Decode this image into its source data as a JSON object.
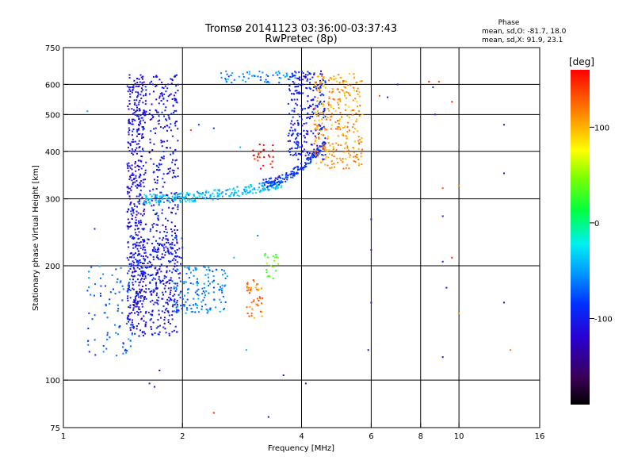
{
  "title": "Tromsø 20141123 03:36:00-03:37:43",
  "subtitle": "RwPretec (8p)",
  "phase_box": {
    "heading": "Phase",
    "line_o": "mean, sd,O: -81.7, 18.0",
    "line_x": "mean, sd,X:  91.9, 23.1"
  },
  "colorbar": {
    "unit": "[deg]",
    "ticks": [
      {
        "value": 100,
        "label": "100"
      },
      {
        "value": 0,
        "label": "0"
      },
      {
        "value": -100,
        "label": "-100"
      }
    ],
    "range": [
      -190,
      160
    ]
  },
  "chart_data": {
    "type": "scatter",
    "xlabel": "Frequency [MHz]",
    "ylabel": "Stationary phase Virtual Height [km]",
    "xscale": "log",
    "yscale": "log",
    "xlim": [
      1,
      16
    ],
    "ylim": [
      75,
      750
    ],
    "xticks": [
      {
        "value": 1,
        "label": "1"
      },
      {
        "value": 2,
        "label": "2"
      },
      {
        "value": 4,
        "label": "4"
      },
      {
        "value": 6,
        "label": "6"
      },
      {
        "value": 8,
        "label": "8"
      },
      {
        "value": 10,
        "label": "10"
      },
      {
        "value": 16,
        "label": "16"
      }
    ],
    "yticks": [
      {
        "value": 75,
        "label": "75"
      },
      {
        "value": 100,
        "label": "100"
      },
      {
        "value": 200,
        "label": "200"
      },
      {
        "value": 300,
        "label": "300"
      },
      {
        "value": 400,
        "label": "400"
      },
      {
        "value": 500,
        "label": "500"
      },
      {
        "value": 600,
        "label": "600"
      },
      {
        "value": 750,
        "label": "750"
      }
    ],
    "gridlines_x": [
      2,
      4,
      6,
      8,
      10
    ],
    "gridlines_y": [
      100,
      200,
      300,
      400,
      500,
      600
    ],
    "grid": true,
    "colorscale": "rainbow",
    "clusters": [
      {
        "f": [
          1.45,
          1.62
        ],
        "h": [
          130,
          640
        ],
        "phase": -110,
        "n": 520,
        "shape": "band"
      },
      {
        "f": [
          1.65,
          1.95
        ],
        "h": [
          130,
          640
        ],
        "phase": -105,
        "n": 380,
        "shape": "band"
      },
      {
        "f": [
          1.5,
          2.0
        ],
        "h": [
          150,
          240
        ],
        "phase": -100,
        "n": 220,
        "shape": "band"
      },
      {
        "f": [
          1.9,
          2.6
        ],
        "h": [
          150,
          200
        ],
        "phase": -60,
        "n": 140,
        "shape": "band"
      },
      {
        "f": [
          1.15,
          1.5
        ],
        "h": [
          115,
          200
        ],
        "phase": -70,
        "n": 90,
        "shape": "band"
      },
      {
        "f0": 1.6,
        "f1": 3.6,
        "h0": 300,
        "h1": 330,
        "phase": -40,
        "n": 260,
        "shape": "trace"
      },
      {
        "f0": 3.2,
        "f1": 4.6,
        "h0": 330,
        "h1": 420,
        "phase": -90,
        "n": 160,
        "shape": "trace"
      },
      {
        "f": [
          3.7,
          4.6
        ],
        "h": [
          380,
          650
        ],
        "phase": -100,
        "n": 260,
        "shape": "band"
      },
      {
        "f": [
          4.3,
          5.7
        ],
        "h": [
          360,
          640
        ],
        "phase": 110,
        "n": 300,
        "shape": "band"
      },
      {
        "f": [
          2.5,
          3.9
        ],
        "h": [
          605,
          650
        ],
        "phase": -60,
        "n": 60,
        "shape": "band"
      },
      {
        "f": [
          2.9,
          3.2
        ],
        "h": [
          145,
          185
        ],
        "phase": 120,
        "n": 45,
        "shape": "band"
      },
      {
        "f": [
          3.2,
          3.5
        ],
        "h": [
          185,
          215
        ],
        "phase": 40,
        "n": 20,
        "shape": "band"
      },
      {
        "f": [
          3.0,
          3.4
        ],
        "h": [
          360,
          420
        ],
        "phase": 160,
        "n": 25,
        "shape": "band"
      }
    ],
    "scattered_points": [
      {
        "f": 1.7,
        "h": 96,
        "phase": -100
      },
      {
        "f": 1.65,
        "h": 98,
        "phase": -100
      },
      {
        "f": 1.75,
        "h": 106,
        "phase": -120
      },
      {
        "f": 2.4,
        "h": 82,
        "phase": 150
      },
      {
        "f": 3.3,
        "h": 80,
        "phase": -120
      },
      {
        "f": 4.1,
        "h": 98,
        "phase": -110
      },
      {
        "f": 3.6,
        "h": 103,
        "phase": -110
      },
      {
        "f": 5.9,
        "h": 120,
        "phase": -110
      },
      {
        "f": 6.0,
        "h": 160,
        "phase": -110
      },
      {
        "f": 6.0,
        "h": 220,
        "phase": -110
      },
      {
        "f": 6.0,
        "h": 265,
        "phase": -110
      },
      {
        "f": 6.3,
        "h": 560,
        "phase": 130
      },
      {
        "f": 6.6,
        "h": 555,
        "phase": -100
      },
      {
        "f": 7.0,
        "h": 600,
        "phase": -110
      },
      {
        "f": 8.4,
        "h": 610,
        "phase": 150
      },
      {
        "f": 8.6,
        "h": 590,
        "phase": -100
      },
      {
        "f": 8.9,
        "h": 610,
        "phase": 140
      },
      {
        "f": 9.6,
        "h": 540,
        "phase": 150
      },
      {
        "f": 8.7,
        "h": 500,
        "phase": -100
      },
      {
        "f": 9.1,
        "h": 320,
        "phase": 130
      },
      {
        "f": 9.1,
        "h": 270,
        "phase": -100
      },
      {
        "f": 9.1,
        "h": 205,
        "phase": -100
      },
      {
        "f": 9.6,
        "h": 210,
        "phase": 150
      },
      {
        "f": 9.3,
        "h": 175,
        "phase": -100
      },
      {
        "f": 9.1,
        "h": 115,
        "phase": -100
      },
      {
        "f": 10.0,
        "h": 150,
        "phase": 110
      },
      {
        "f": 10.0,
        "h": 325,
        "phase": 120
      },
      {
        "f": 13.0,
        "h": 350,
        "phase": -100
      },
      {
        "f": 13.0,
        "h": 470,
        "phase": -100
      },
      {
        "f": 13.0,
        "h": 160,
        "phase": -120
      },
      {
        "f": 13.5,
        "h": 120,
        "phase": 120
      },
      {
        "f": 1.2,
        "h": 250,
        "phase": -100
      },
      {
        "f": 1.15,
        "h": 510,
        "phase": -50
      },
      {
        "f": 2.8,
        "h": 410,
        "phase": -40
      },
      {
        "f": 3.1,
        "h": 240,
        "phase": -60
      },
      {
        "f": 2.7,
        "h": 210,
        "phase": -40
      },
      {
        "f": 2.9,
        "h": 120,
        "phase": -40
      },
      {
        "f": 2.2,
        "h": 470,
        "phase": -80
      },
      {
        "f": 2.4,
        "h": 460,
        "phase": -90
      },
      {
        "f": 5.2,
        "h": 610,
        "phase": 60
      },
      {
        "f": 5.7,
        "h": 500,
        "phase": 90
      },
      {
        "f": 2.1,
        "h": 455,
        "phase": 140
      }
    ]
  }
}
